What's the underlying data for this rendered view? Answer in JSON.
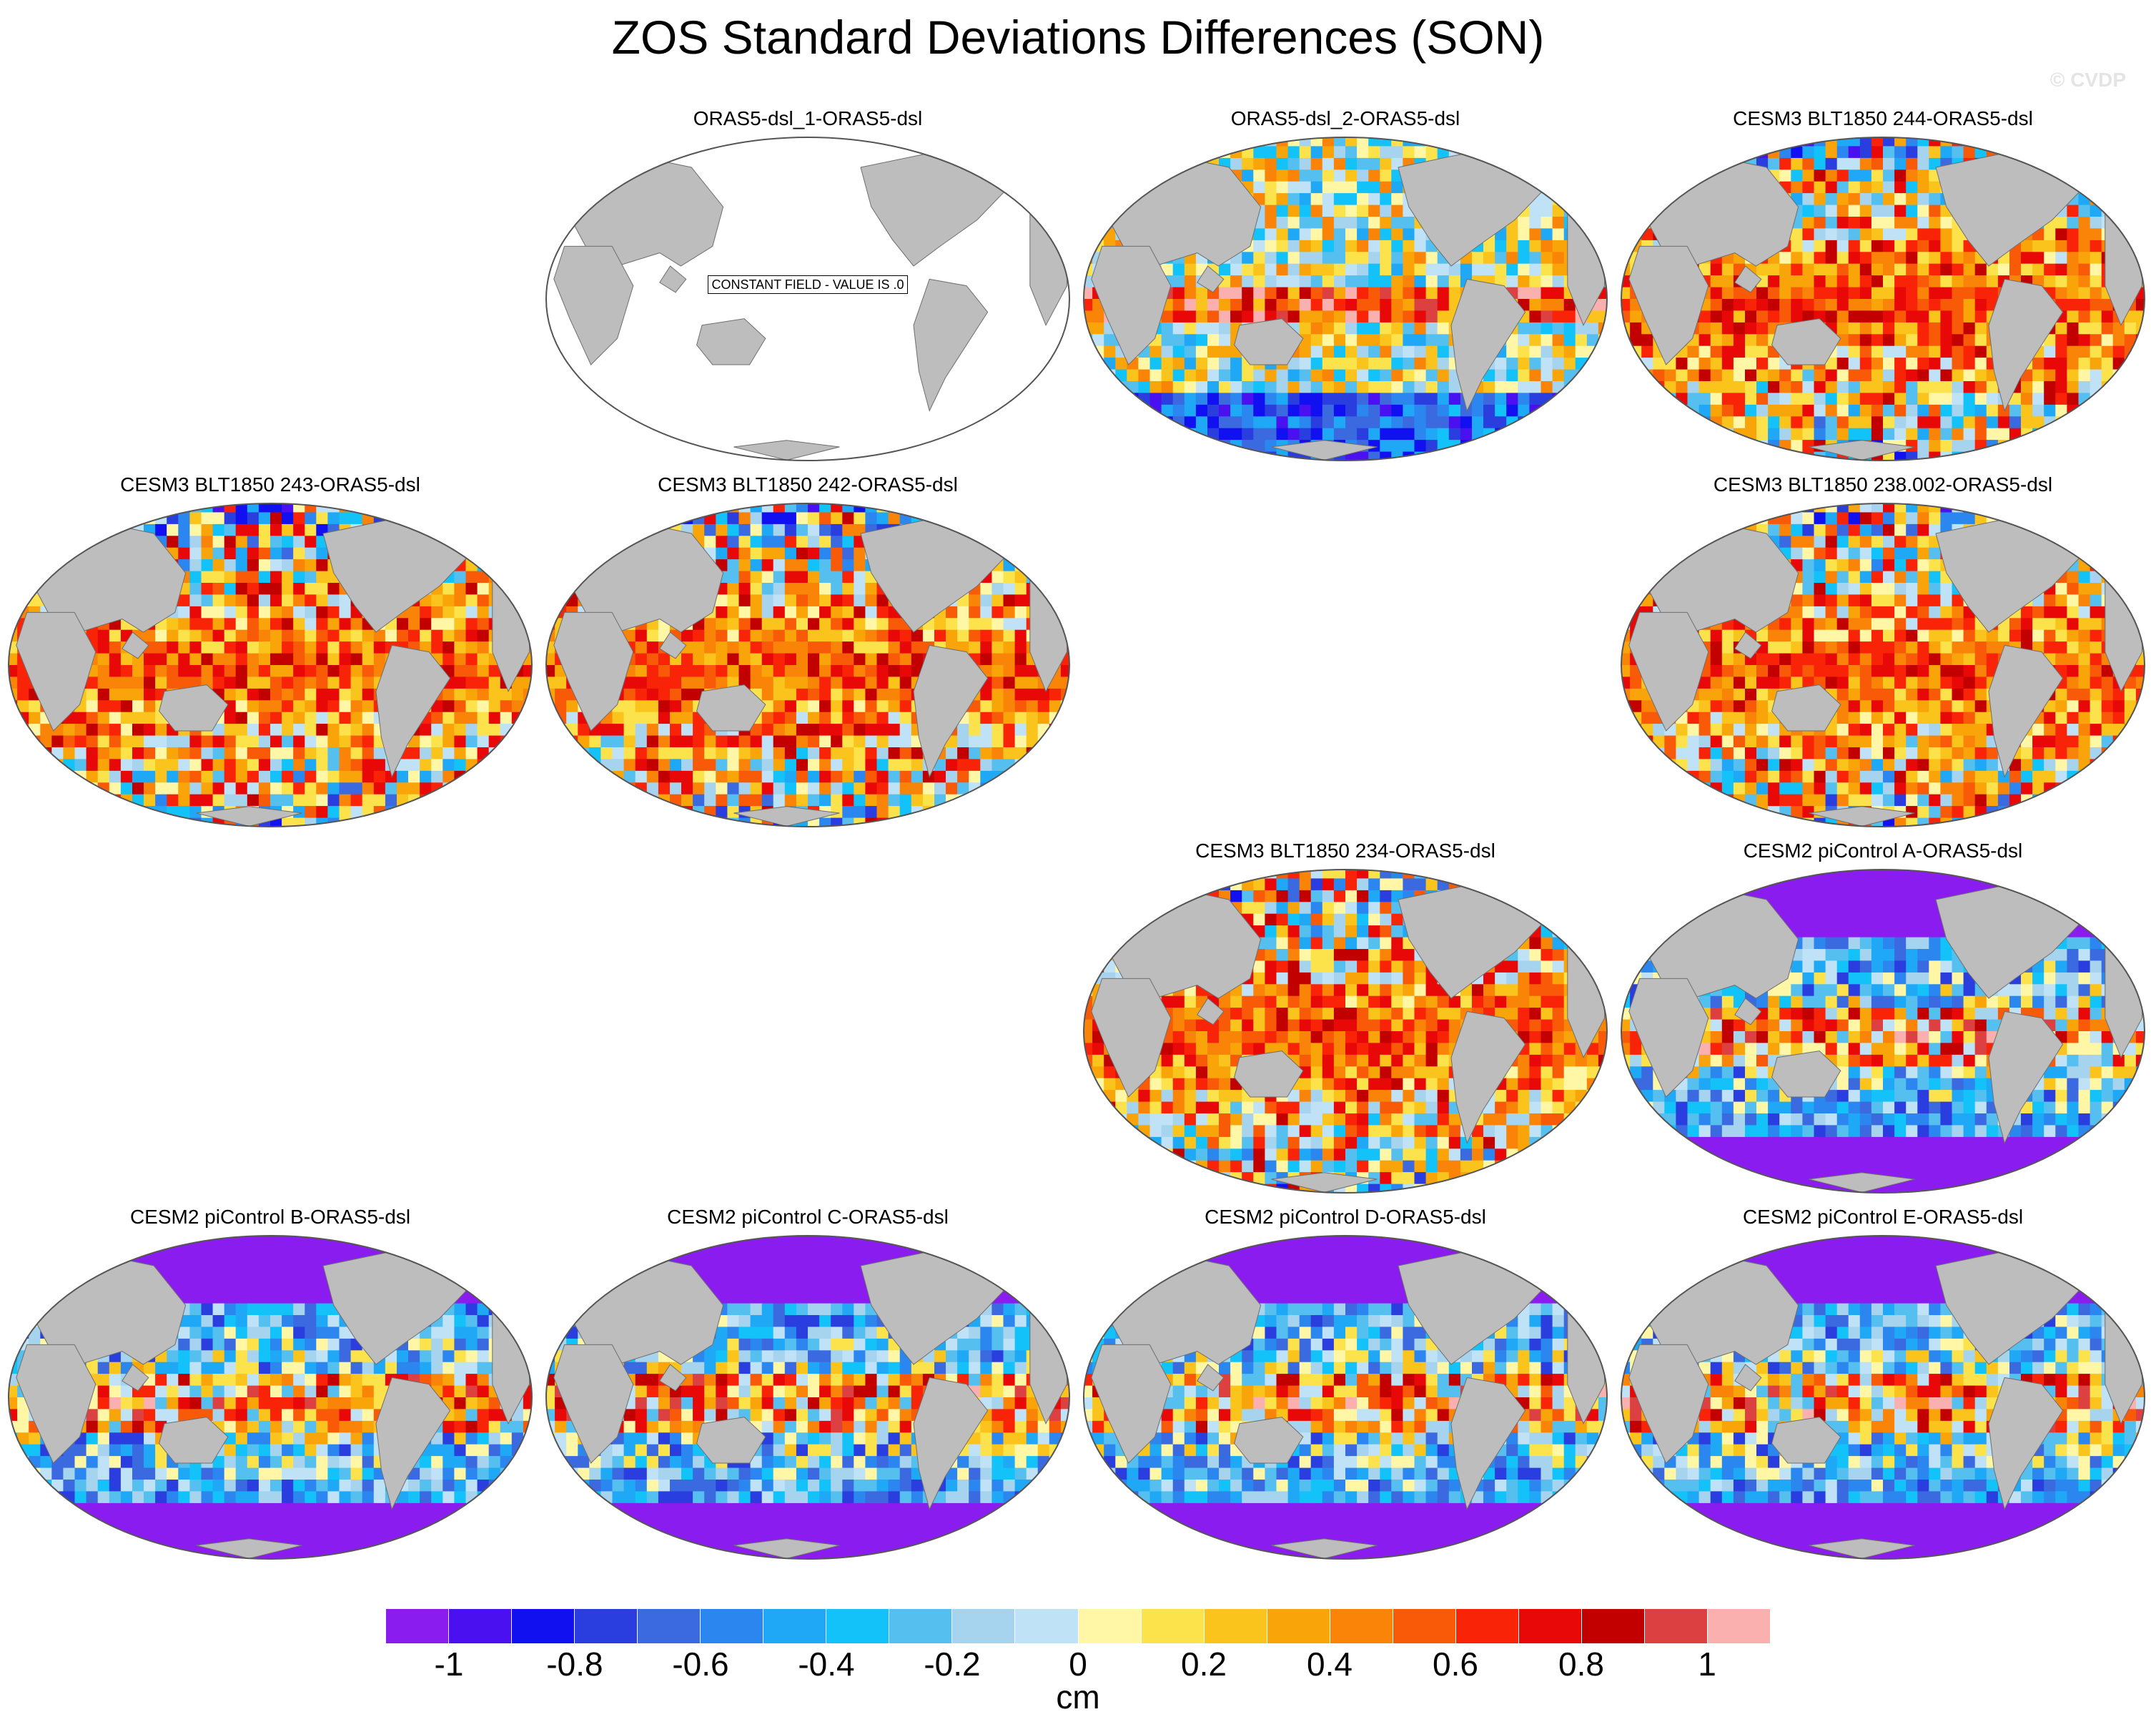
{
  "title": "ZOS Standard Deviations Differences (SON)",
  "copyright": "© CVDP",
  "units": "cm",
  "colors": {
    "land": "#bdbdbd",
    "ocean_constant": "#ffffff",
    "coast": "#6e6e6e",
    "palette": [
      "#8b1cf0",
      "#4a10f0",
      "#1010f0",
      "#2a3ee0",
      "#3b6ae0",
      "#2b86f0",
      "#1ea8f5",
      "#12c2f8",
      "#55c0ef",
      "#a6d4ee",
      "#bfe2f6",
      "#fff7a6",
      "#fde34b",
      "#fbc41c",
      "#f9a408",
      "#f98408",
      "#f95a08",
      "#f92408",
      "#e80808",
      "#c20000",
      "#dc4040",
      "#fbb0b0"
    ]
  },
  "colorbar": {
    "tick_labels": [
      "-1",
      "-0.8",
      "-0.6",
      "-0.4",
      "-0.2",
      "0",
      "0.2",
      "0.4",
      "0.6",
      "0.8",
      "1"
    ],
    "tick_boundary_index": [
      1,
      3,
      5,
      7,
      9,
      11,
      13,
      15,
      17,
      19,
      21
    ]
  },
  "panels": [
    {
      "title": "ORAS5-dsl_1-ORAS5-dsl",
      "slot": [
        0,
        1
      ],
      "dominant": "constant",
      "note": "CONSTANT FIELD - VALUE IS .0"
    },
    {
      "title": "ORAS5-dsl_2-ORAS5-dsl",
      "slot": [
        0,
        2
      ],
      "dominant": "mixed"
    },
    {
      "title": "CESM3 BLT1850 244-ORAS5-dsl",
      "slot": [
        0,
        3
      ],
      "dominant": "positive"
    },
    {
      "title": "CESM3 BLT1850 243-ORAS5-dsl",
      "slot": [
        1,
        0
      ],
      "dominant": "positive"
    },
    {
      "title": "CESM3 BLT1850 242-ORAS5-dsl",
      "slot": [
        1,
        1
      ],
      "dominant": "positive"
    },
    {
      "title": "CESM3 BLT1850 238.002-ORAS5-dsl",
      "slot": [
        1,
        3
      ],
      "dominant": "positive"
    },
    {
      "title": "CESM3 BLT1850 234-ORAS5-dsl",
      "slot": [
        2,
        2
      ],
      "dominant": "positive"
    },
    {
      "title": "CESM2 piControl A-ORAS5-dsl",
      "slot": [
        2,
        3
      ],
      "dominant": "negative"
    },
    {
      "title": "CESM2 piControl B-ORAS5-dsl",
      "slot": [
        3,
        0
      ],
      "dominant": "negative"
    },
    {
      "title": "CESM2 piControl C-ORAS5-dsl",
      "slot": [
        3,
        1
      ],
      "dominant": "negative"
    },
    {
      "title": "CESM2 piControl D-ORAS5-dsl",
      "slot": [
        3,
        2
      ],
      "dominant": "negative"
    },
    {
      "title": "CESM2 piControl E-ORAS5-dsl",
      "slot": [
        3,
        3
      ],
      "dominant": "negative"
    }
  ]
}
